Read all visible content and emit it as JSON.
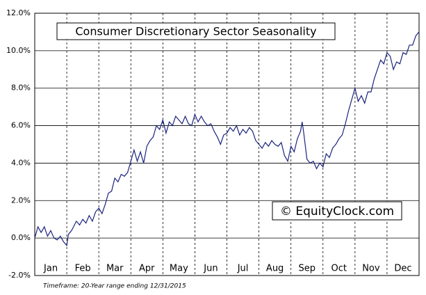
{
  "chart_data": {
    "type": "line",
    "title": "Consumer Discretionary Sector Seasonality",
    "watermark": "© EquityClock.com",
    "footnote": "Timeframe: 20-Year range ending 12/31/2015",
    "categories": [
      "Jan",
      "Feb",
      "Mar",
      "Apr",
      "May",
      "Jun",
      "Jul",
      "Aug",
      "Sep",
      "Oct",
      "Nov",
      "Dec"
    ],
    "xlim": [
      0,
      12
    ],
    "ylim": [
      -2,
      12
    ],
    "yticks": [
      {
        "value": -2,
        "label": "-2.0%"
      },
      {
        "value": 0,
        "label": "0.0%"
      },
      {
        "value": 2,
        "label": "2.0%"
      },
      {
        "value": 4,
        "label": "4.0%"
      },
      {
        "value": 6,
        "label": "6.0%"
      },
      {
        "value": 8,
        "label": "8.0%"
      },
      {
        "value": 10,
        "label": "10.0%"
      },
      {
        "value": 12,
        "label": "12.0%"
      }
    ],
    "grid": true,
    "color": "#1a237e",
    "x": [
      0,
      0.1,
      0.2,
      0.3,
      0.4,
      0.5,
      0.6,
      0.7,
      0.8,
      0.9,
      1.0,
      1.05,
      1.15,
      1.3,
      1.4,
      1.5,
      1.6,
      1.7,
      1.8,
      1.9,
      2.0,
      2.1,
      2.2,
      2.3,
      2.4,
      2.5,
      2.6,
      2.7,
      2.8,
      2.9,
      3.0,
      3.1,
      3.2,
      3.3,
      3.4,
      3.5,
      3.6,
      3.7,
      3.8,
      3.9,
      4.0,
      4.1,
      4.2,
      4.3,
      4.4,
      4.5,
      4.6,
      4.7,
      4.8,
      4.9,
      5.0,
      5.1,
      5.2,
      5.3,
      5.4,
      5.5,
      5.6,
      5.7,
      5.8,
      5.9,
      6.0,
      6.1,
      6.2,
      6.3,
      6.4,
      6.5,
      6.6,
      6.7,
      6.8,
      6.9,
      7.0,
      7.1,
      7.2,
      7.3,
      7.4,
      7.5,
      7.6,
      7.7,
      7.8,
      7.9,
      8.0,
      8.1,
      8.2,
      8.3,
      8.35,
      8.4,
      8.5,
      8.6,
      8.7,
      8.8,
      8.9,
      9.0,
      9.1,
      9.2,
      9.3,
      9.4,
      9.5,
      9.6,
      9.7,
      9.8,
      9.9,
      10.0,
      10.1,
      10.2,
      10.3,
      10.4,
      10.5,
      10.6,
      10.7,
      10.8,
      10.9,
      11.0,
      11.1,
      11.2,
      11.3,
      11.4,
      11.5,
      11.6,
      11.7,
      11.8,
      11.9,
      12.0
    ],
    "values": [
      0.0,
      0.6,
      0.3,
      0.6,
      0.1,
      0.4,
      0.0,
      -0.1,
      0.1,
      -0.2,
      -0.4,
      0.2,
      0.4,
      0.9,
      0.7,
      1.0,
      0.8,
      1.2,
      0.9,
      1.4,
      1.6,
      1.3,
      1.8,
      2.4,
      2.5,
      3.2,
      3.0,
      3.4,
      3.3,
      3.5,
      4.1,
      4.7,
      4.1,
      4.6,
      4.0,
      4.9,
      5.2,
      5.4,
      6.0,
      5.8,
      6.3,
      5.6,
      6.2,
      6.0,
      6.5,
      6.3,
      6.1,
      6.5,
      6.1,
      6.0,
      6.6,
      6.2,
      6.5,
      6.2,
      6.0,
      6.1,
      5.7,
      5.4,
      5.0,
      5.5,
      5.6,
      5.9,
      5.7,
      6.0,
      5.5,
      5.8,
      5.6,
      5.9,
      5.7,
      5.2,
      5.0,
      4.8,
      5.1,
      4.9,
      5.2,
      5.0,
      4.9,
      5.1,
      4.4,
      4.1,
      4.9,
      4.6,
      5.3,
      5.7,
      6.2,
      5.6,
      4.2,
      4.0,
      4.1,
      3.7,
      4.0,
      3.8,
      4.5,
      4.3,
      4.8,
      5.0,
      5.3,
      5.5,
      6.1,
      6.8,
      7.4,
      8.0,
      7.3,
      7.6,
      7.2,
      7.8,
      7.8,
      8.5,
      9.0,
      9.5,
      9.3,
      9.9,
      9.7,
      9.0,
      9.4,
      9.3,
      9.9,
      9.8,
      10.3,
      10.3,
      10.8,
      11.0
    ]
  }
}
